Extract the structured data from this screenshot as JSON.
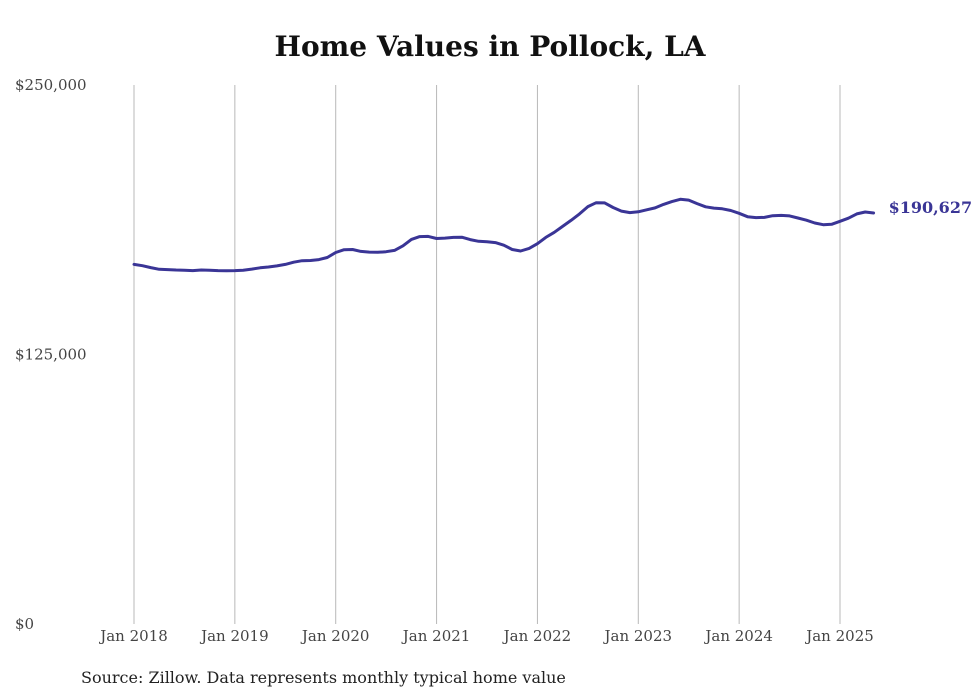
{
  "chart_data": {
    "type": "line",
    "title": "Home Values in Pollock, LA",
    "xlabel": "",
    "ylabel": "",
    "ylim": [
      0,
      250000
    ],
    "y_ticks": [
      "$250,000",
      "$125,000",
      "$0"
    ],
    "y_tick_values": [
      250000,
      125000,
      0
    ],
    "x_ticks": [
      "Jan 2018",
      "Jan 2019",
      "Jan 2020",
      "Jan 2021",
      "Jan 2022",
      "Jan 2023",
      "Jan 2024",
      "Jan 2025"
    ],
    "x_tick_values": [
      2018,
      2019,
      2020,
      2021,
      2022,
      2023,
      2024,
      2025
    ],
    "xlim": [
      2018,
      2025.33
    ],
    "grid": "vertical",
    "line_color": "#3a3596",
    "end_label": "$190,627",
    "series": [
      {
        "x": [
          2018.0,
          2018.083,
          2018.167,
          2018.25,
          2018.333,
          2018.417,
          2018.5,
          2018.583,
          2018.667,
          2018.75,
          2018.833,
          2018.917,
          2019.0,
          2019.083,
          2019.167,
          2019.25,
          2019.333,
          2019.417,
          2019.5,
          2019.583,
          2019.667,
          2019.75,
          2019.833,
          2019.917,
          2020.0,
          2020.083,
          2020.167,
          2020.25,
          2020.333,
          2020.417,
          2020.5,
          2020.583,
          2020.667,
          2020.75,
          2020.833,
          2020.917,
          2021.0,
          2021.083,
          2021.167,
          2021.25,
          2021.333,
          2021.417,
          2021.5,
          2021.583,
          2021.667,
          2021.75,
          2021.833,
          2021.917,
          2022.0,
          2022.083,
          2022.167,
          2022.25,
          2022.333,
          2022.417,
          2022.5,
          2022.583,
          2022.667,
          2022.75,
          2022.833,
          2022.917,
          2023.0,
          2023.083,
          2023.167,
          2023.25,
          2023.333,
          2023.417,
          2023.5,
          2023.583,
          2023.667,
          2023.75,
          2023.833,
          2023.917,
          2024.0,
          2024.083,
          2024.167,
          2024.25,
          2024.333,
          2024.417,
          2024.5,
          2024.583,
          2024.667,
          2024.75,
          2024.833,
          2024.917,
          2025.0,
          2025.083,
          2025.167,
          2025.25,
          2025.333
        ],
        "values": [
          166800,
          166200,
          165300,
          164500,
          164400,
          164200,
          164100,
          163900,
          164200,
          164100,
          163900,
          163800,
          163900,
          164100,
          164600,
          165200,
          165600,
          166100,
          166800,
          167800,
          168500,
          168600,
          169000,
          170000,
          172300,
          173600,
          173700,
          172800,
          172500,
          172400,
          172700,
          173300,
          175400,
          178400,
          179700,
          179800,
          178800,
          179000,
          179300,
          179400,
          178300,
          177500,
          177300,
          176900,
          175700,
          173700,
          173000,
          174200,
          176400,
          179300,
          181700,
          184400,
          187200,
          190200,
          193600,
          195400,
          195300,
          193200,
          191500,
          190800,
          191200,
          192100,
          193000,
          194600,
          195900,
          197000,
          196600,
          195000,
          193500,
          192900,
          192600,
          191800,
          190500,
          188900,
          188500,
          188600,
          189400,
          189500,
          189300,
          188300,
          187300,
          186000,
          185200,
          185400,
          186800,
          188200,
          190200,
          191100,
          190627
        ]
      }
    ],
    "source": "Source: Zillow. Data represents monthly typical home value"
  }
}
